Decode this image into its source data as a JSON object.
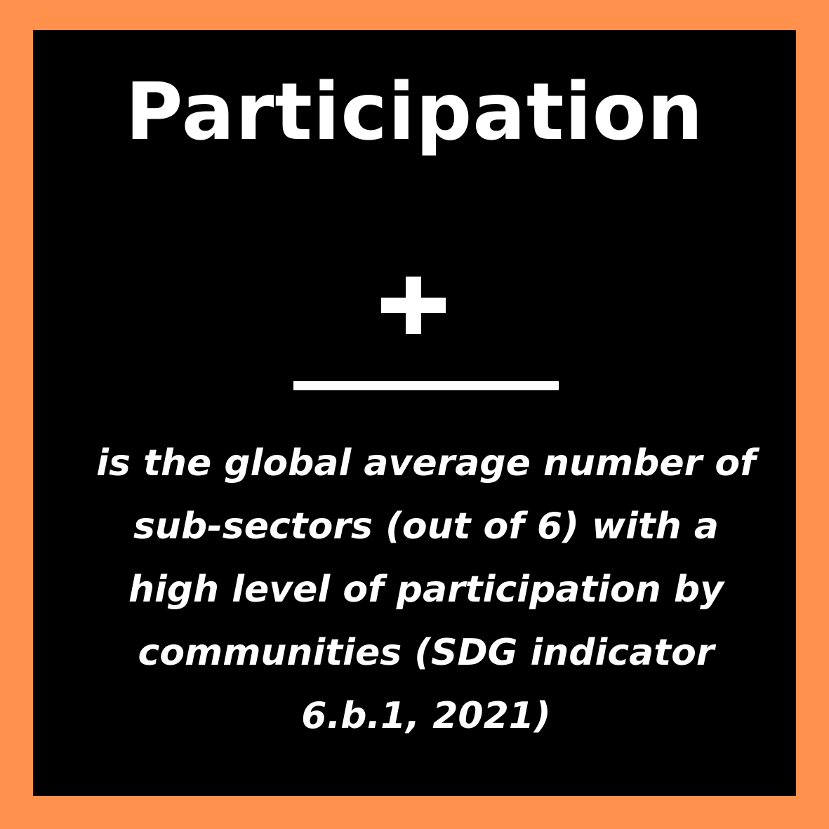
{
  "colors": {
    "background": "#FF914D",
    "panel": "#000000",
    "text": "#FFFFFF"
  },
  "title": "Participation",
  "symbol": "plus-icon",
  "description": "is the global average number of sub-sectors (out of 6) with a high level of participation by communities (SDG indicator 6.b.1, 2021)"
}
